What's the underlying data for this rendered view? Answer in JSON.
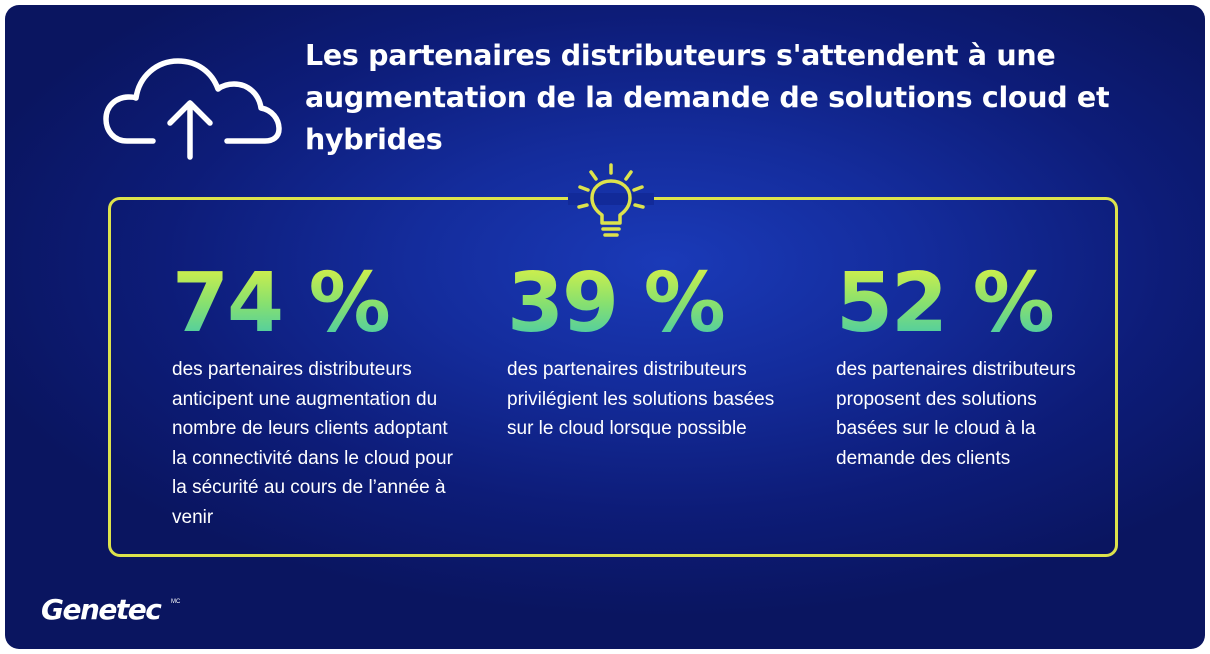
{
  "title": "Les partenaires distributeurs s'attendent à une augmentation de la demande de solutions cloud et hybrides",
  "icons": {
    "cloud": "cloud-upload-icon",
    "bulb": "lightbulb-icon"
  },
  "colors": {
    "background": "#142c9c",
    "frame": "#dde34c",
    "stat_gradient_top": "#d4f048",
    "stat_gradient_bottom": "#3cc6b4",
    "text": "#ffffff"
  },
  "stats": [
    {
      "value": "74 %",
      "description": "des partenaires distributeurs anticipent une augmentation du nombre de leurs clients adoptant la connectivité dans le cloud pour la sécurité au cours de l’année à venir"
    },
    {
      "value": "39 %",
      "description": "des partenaires distributeurs privilégient les solutions basées sur le cloud lorsque possible"
    },
    {
      "value": "52 %",
      "description": "des partenaires distributeurs proposent des solutions basées sur le cloud à la demande des clients"
    }
  ],
  "logo": {
    "name": "Genetec",
    "mark": "MC"
  }
}
